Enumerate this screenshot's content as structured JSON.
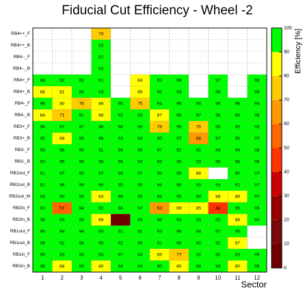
{
  "chart_data": {
    "type": "heatmap",
    "title": "Fiducial Cut Efficiency - Wheel -2",
    "x_label": "Sector",
    "colorbar_label": "Efficiency [%]",
    "categories": [
      "1",
      "2",
      "3",
      "4",
      "5",
      "6",
      "7",
      "8",
      "9",
      "10",
      "11",
      "12"
    ],
    "rows": [
      "RB4++_F",
      "RB4++_B",
      "RB4--_F",
      "RB4--_B",
      "RB4+_F",
      "RB4+_B",
      "RB4-_F",
      "RB4-_B",
      "RB3+_F",
      "RB3+_B",
      "RB3-_F",
      "RB3-_B",
      "RB2out_F",
      "RB2out_B",
      "RB2out_M",
      "RB2in_F",
      "RB2in_B",
      "RB1out_F",
      "RB1out_B",
      "RB1in_F",
      "RB1in_B"
    ],
    "values": [
      [
        null,
        null,
        null,
        78,
        null,
        null,
        null,
        null,
        null,
        null,
        null,
        null
      ],
      [
        null,
        null,
        null,
        92,
        null,
        null,
        null,
        null,
        null,
        null,
        null,
        null
      ],
      [
        null,
        null,
        null,
        92,
        null,
        null,
        null,
        null,
        null,
        null,
        null,
        null
      ],
      [
        null,
        null,
        null,
        92,
        null,
        null,
        null,
        null,
        null,
        null,
        null,
        null
      ],
      [
        94,
        92,
        92,
        91,
        null,
        84,
        93,
        96,
        null,
        97,
        null,
        96
      ],
      [
        88,
        81,
        94,
        93,
        null,
        89,
        95,
        93,
        null,
        96,
        null,
        96
      ],
      [
        96,
        80,
        78,
        88,
        96,
        75,
        94,
        96,
        96,
        96,
        96,
        94
      ],
      [
        84,
        71,
        91,
        88,
        92,
        93,
        87,
        96,
        97,
        96,
        96,
        96
      ],
      [
        96,
        97,
        97,
        96,
        96,
        96,
        79,
        96,
        76,
        95,
        95,
        95
      ],
      [
        95,
        89,
        96,
        96,
        93,
        94,
        90,
        97,
        68,
        97,
        95,
        97
      ],
      [
        93,
        96,
        95,
        91,
        96,
        96,
        97,
        92,
        92,
        94,
        94,
        98
      ],
      [
        93,
        95,
        96,
        96,
        96,
        94,
        93,
        95,
        93,
        95,
        96,
        96
      ],
      [
        91,
        97,
        95,
        97,
        96,
        97,
        96,
        96,
        88,
        null,
        90,
        97
      ],
      [
        92,
        96,
        95,
        90,
        95,
        95,
        94,
        96,
        95,
        93,
        91,
        97
      ],
      [
        93,
        90,
        96,
        83,
        96,
        95,
        94,
        95,
        90,
        88,
        89,
        97
      ],
      [
        93,
        57,
        94,
        92,
        94,
        97,
        63,
        89,
        85,
        48,
        95,
        96
      ],
      [
        96,
        93,
        95,
        89,
        0,
        93,
        96,
        93,
        93,
        92,
        88,
        90
      ],
      [
        96,
        94,
        96,
        93,
        91,
        91,
        93,
        96,
        94,
        97,
        95,
        null
      ],
      [
        98,
        92,
        94,
        95,
        92,
        96,
        91,
        96,
        92,
        91,
        87,
        null
      ],
      [
        95,
        93,
        93,
        93,
        97,
        94,
        89,
        77,
        92,
        92,
        93,
        95
      ],
      [
        96,
        88,
        93,
        80,
        94,
        94,
        90,
        80,
        94,
        93,
        80,
        95
      ]
    ],
    "zlim": [
      0,
      100
    ],
    "zticks": [
      0,
      10,
      20,
      30,
      40,
      50,
      60,
      70,
      80,
      90,
      100
    ],
    "colors": [
      "#6e0000",
      "#7a0a0a",
      "#990000",
      "#cc0000",
      "#ff3300",
      "#ff6600",
      "#ff9900",
      "#ffcc00",
      "#ffff00",
      "#00ff00"
    ],
    "grid": true
  }
}
